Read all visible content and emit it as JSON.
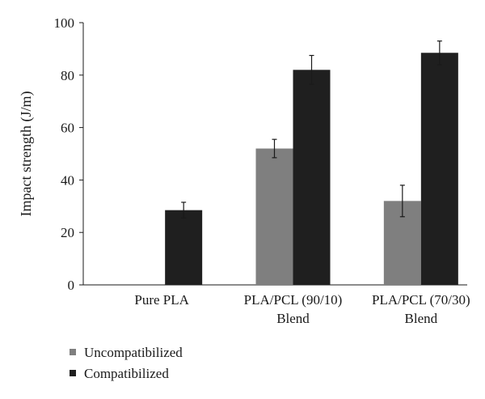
{
  "chart_data": {
    "type": "bar",
    "title": "",
    "xlabel": "",
    "ylabel": "Impact strength (J/m)",
    "ylim": [
      0,
      100
    ],
    "yticks": [
      0,
      20,
      40,
      60,
      80,
      100
    ],
    "grid": false,
    "legend_position": "bottom-left",
    "categories": [
      [
        "Pure PLA"
      ],
      [
        "PLA/PCL (90/10)",
        "Blend"
      ],
      [
        "PLA/PCL (70/30)",
        "Blend"
      ]
    ],
    "series": [
      {
        "name": "Uncompatibilized",
        "color": "#7f7f7f",
        "values": [
          null,
          52,
          32
        ],
        "errors": [
          null,
          3.5,
          6
        ]
      },
      {
        "name": "Compatibilized",
        "color": "#1f1f1f",
        "values": [
          28.5,
          82,
          88.5
        ],
        "errors": [
          3,
          5.5,
          4.5
        ]
      }
    ]
  }
}
